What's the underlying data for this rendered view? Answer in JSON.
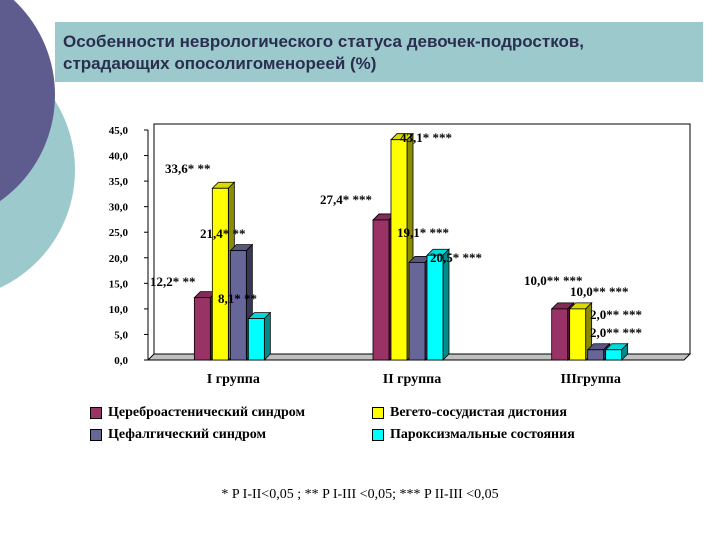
{
  "slide": {
    "title_lines": [
      "Особенности неврологического статуса девочек-подростков,",
      "страдающих опосолигоменореей (%)"
    ],
    "footnote": "* P I-II<0,05 ; ** P I-III <0,05; *** P II-III <0,05",
    "colors": {
      "title_bg": "#9cc9cc",
      "circle_dark": "#5e5c8e",
      "circle_light": "#9cc9cc"
    }
  },
  "chart_data": {
    "type": "bar",
    "title": "",
    "categories": [
      "I группа",
      "II группа",
      "IIIгруппа"
    ],
    "ylim": [
      0,
      45
    ],
    "yticks": [
      "0,0",
      "5,0",
      "10,0",
      "15,0",
      "20,0",
      "25,0",
      "30,0",
      "35,0",
      "40,0",
      "45,0"
    ],
    "legend_position": "bottom",
    "grid": false,
    "series": [
      {
        "name": "Цереброастенический синдром",
        "color": "#993366",
        "values": [
          12.2,
          27.4,
          10.0
        ],
        "labels": [
          "12,2* **",
          "27,4* ***",
          "10,0** ***"
        ]
      },
      {
        "name": "Вегето-сосудистая дистония",
        "color": "#ffff00",
        "values": [
          33.6,
          43.1,
          10.0
        ],
        "labels": [
          "33,6* **",
          "43,1* ***",
          "10,0** ***"
        ]
      },
      {
        "name": "Цефалгический синдром",
        "color": "#666699",
        "values": [
          21.4,
          19.1,
          2.0
        ],
        "labels": [
          "21,4* **",
          "19,1* ***",
          "2,0** ***"
        ]
      },
      {
        "name": "Пароксизмальные состояния",
        "color": "#00ffff",
        "values": [
          8.1,
          20.5,
          2.0
        ],
        "labels": [
          "8,1* **",
          "20,5* ***",
          "2,0** ***"
        ]
      }
    ]
  }
}
